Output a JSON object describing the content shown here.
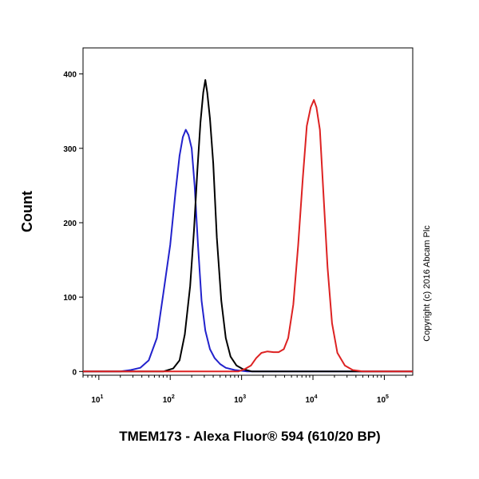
{
  "chart_data": {
    "type": "line",
    "xlabel": "TMEM173 - Alexa Fluor® 594 (610/20 BP)",
    "ylabel": "Count",
    "x_scale": "log",
    "xlim": [
      6,
      250000
    ],
    "ylim": [
      -5,
      435
    ],
    "y_ticks": [
      0,
      100,
      200,
      300,
      400
    ],
    "x_ticks": [
      {
        "value": 10,
        "base": "10",
        "exp": "1"
      },
      {
        "value": 100,
        "base": "10",
        "exp": "2"
      },
      {
        "value": 1000,
        "base": "10",
        "exp": "3"
      },
      {
        "value": 10000,
        "base": "10",
        "exp": "4"
      },
      {
        "value": 100000,
        "base": "10",
        "exp": "5"
      }
    ],
    "annotation": "Copyright (c) 2016 Abcam Plc",
    "grid": false,
    "series": [
      {
        "color": "#2222cc",
        "points": [
          [
            6,
            0
          ],
          [
            20,
            0
          ],
          [
            28,
            2
          ],
          [
            38,
            5
          ],
          [
            50,
            15
          ],
          [
            65,
            45
          ],
          [
            80,
            105
          ],
          [
            100,
            170
          ],
          [
            118,
            240
          ],
          [
            135,
            290
          ],
          [
            150,
            315
          ],
          [
            165,
            325
          ],
          [
            180,
            318
          ],
          [
            200,
            300
          ],
          [
            220,
            250
          ],
          [
            245,
            170
          ],
          [
            275,
            95
          ],
          [
            310,
            55
          ],
          [
            360,
            30
          ],
          [
            420,
            18
          ],
          [
            500,
            10
          ],
          [
            600,
            5
          ],
          [
            800,
            2
          ],
          [
            1200,
            0
          ],
          [
            250000,
            0
          ]
        ]
      },
      {
        "color": "#000000",
        "points": [
          [
            6,
            0
          ],
          [
            80,
            0
          ],
          [
            110,
            4
          ],
          [
            135,
            15
          ],
          [
            160,
            50
          ],
          [
            190,
            115
          ],
          [
            215,
            190
          ],
          [
            240,
            270
          ],
          [
            265,
            335
          ],
          [
            290,
            375
          ],
          [
            310,
            392
          ],
          [
            330,
            375
          ],
          [
            360,
            340
          ],
          [
            400,
            280
          ],
          [
            450,
            180
          ],
          [
            520,
            95
          ],
          [
            600,
            45
          ],
          [
            700,
            20
          ],
          [
            850,
            8
          ],
          [
            1050,
            3
          ],
          [
            1400,
            0
          ],
          [
            250000,
            0
          ]
        ]
      },
      {
        "color": "#dd2222",
        "points": [
          [
            6,
            0
          ],
          [
            900,
            0
          ],
          [
            1100,
            3
          ],
          [
            1350,
            8
          ],
          [
            1600,
            18
          ],
          [
            1900,
            25
          ],
          [
            2300,
            27
          ],
          [
            2800,
            26
          ],
          [
            3300,
            26
          ],
          [
            3900,
            30
          ],
          [
            4500,
            45
          ],
          [
            5300,
            90
          ],
          [
            6200,
            170
          ],
          [
            7200,
            260
          ],
          [
            8200,
            330
          ],
          [
            9300,
            355
          ],
          [
            10300,
            365
          ],
          [
            11200,
            355
          ],
          [
            12500,
            325
          ],
          [
            14000,
            240
          ],
          [
            16000,
            140
          ],
          [
            18500,
            65
          ],
          [
            22000,
            25
          ],
          [
            28000,
            8
          ],
          [
            36000,
            2
          ],
          [
            50000,
            0
          ],
          [
            250000,
            0
          ]
        ]
      }
    ]
  }
}
